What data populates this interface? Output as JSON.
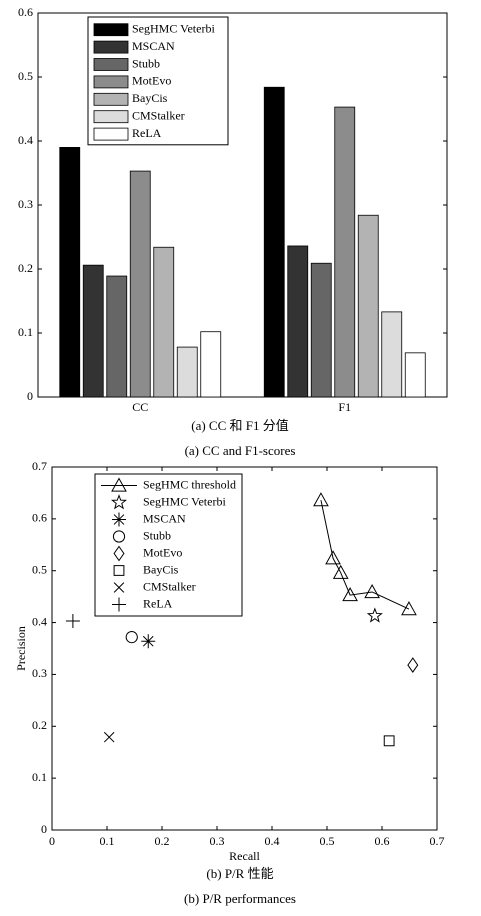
{
  "chart_data": [
    {
      "type": "bar",
      "title": "(a) CC 和 F1 分值",
      "subtitle": "(a) CC and F1-scores",
      "categories": [
        "CC",
        "F1"
      ],
      "series": [
        {
          "name": "SegHMC Veterbi",
          "color": "#000000",
          "values": [
            0.39,
            0.484
          ]
        },
        {
          "name": "MSCAN",
          "color": "#333333",
          "values": [
            0.206,
            0.236
          ]
        },
        {
          "name": "Stubb",
          "color": "#666666",
          "values": [
            0.189,
            0.209
          ]
        },
        {
          "name": "MotEvo",
          "color": "#8c8c8c",
          "values": [
            0.353,
            0.453
          ]
        },
        {
          "name": "BayCis",
          "color": "#b3b3b3",
          "values": [
            0.234,
            0.284
          ]
        },
        {
          "name": "CMStalker",
          "color": "#dcdcdc",
          "values": [
            0.078,
            0.133
          ]
        },
        {
          "name": "ReLA",
          "color": "#ffffff",
          "values": [
            0.102,
            0.069
          ]
        }
      ],
      "ylim": [
        0,
        0.6
      ],
      "yticks": [
        0,
        0.1,
        0.2,
        0.3,
        0.4,
        0.5,
        0.6
      ],
      "legend": "upper left",
      "grid": false
    },
    {
      "type": "scatter",
      "title": "(b) P/R 性能",
      "subtitle": "(b) P/R performances",
      "xlabel": "Recall",
      "ylabel": "Precision",
      "series": [
        {
          "name": "SegHMC threshold",
          "marker": "triangle",
          "line": true,
          "color": "#000000",
          "x": [
            0.489,
            0.511,
            0.525,
            0.542,
            0.582,
            0.649
          ],
          "values": [
            0.636,
            0.524,
            0.496,
            0.453,
            0.459,
            0.426
          ]
        },
        {
          "name": "SegHMC Veterbi",
          "marker": "star",
          "line": false,
          "color": "#000000",
          "x": [
            0.587
          ],
          "values": [
            0.413
          ]
        },
        {
          "name": "MSCAN",
          "marker": "asterisk",
          "line": false,
          "color": "#000000",
          "x": [
            0.175
          ],
          "values": [
            0.364
          ]
        },
        {
          "name": "Stubb",
          "marker": "circle",
          "line": false,
          "color": "#000000",
          "x": [
            0.145
          ],
          "values": [
            0.372
          ]
        },
        {
          "name": "MotEvo",
          "marker": "diamond",
          "line": false,
          "color": "#000000",
          "x": [
            0.656
          ],
          "values": [
            0.318
          ]
        },
        {
          "name": "BayCis",
          "marker": "square",
          "line": false,
          "color": "#000000",
          "x": [
            0.613
          ],
          "values": [
            0.172
          ]
        },
        {
          "name": "CMStalker",
          "marker": "x",
          "line": false,
          "color": "#000000",
          "x": [
            0.104
          ],
          "values": [
            0.179
          ]
        },
        {
          "name": "ReLA",
          "marker": "plus",
          "line": false,
          "color": "#000000",
          "x": [
            0.038
          ],
          "values": [
            0.403
          ]
        }
      ],
      "xlim": [
        0,
        0.7
      ],
      "xticks": [
        0,
        0.1,
        0.2,
        0.3,
        0.4,
        0.5,
        0.6,
        0.7
      ],
      "ylim": [
        0,
        0.7
      ],
      "yticks": [
        0,
        0.1,
        0.2,
        0.3,
        0.4,
        0.5,
        0.6,
        0.7
      ],
      "legend": "upper left",
      "grid": false
    }
  ]
}
